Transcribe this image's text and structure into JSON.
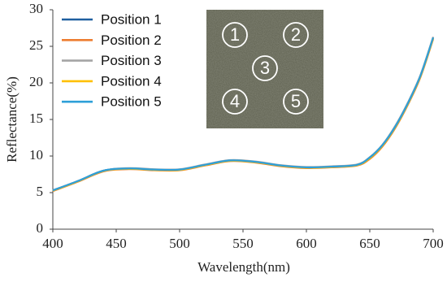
{
  "chart_data": {
    "type": "line",
    "xlabel": "Wavelength(nm)",
    "ylabel": "Reflectance(%)",
    "x": [
      400,
      420,
      440,
      460,
      480,
      500,
      520,
      540,
      560,
      580,
      600,
      620,
      640,
      650,
      660,
      670,
      680,
      690,
      700
    ],
    "series": [
      {
        "name": "Position 1",
        "color": "#1f5fa0",
        "values": [
          5.3,
          6.6,
          8.0,
          8.3,
          8.15,
          8.15,
          8.8,
          9.4,
          9.2,
          8.7,
          8.45,
          8.55,
          8.8,
          9.8,
          11.5,
          14.0,
          17.2,
          21.0,
          26.2
        ]
      },
      {
        "name": "Position 2",
        "color": "#ed7d31",
        "values": [
          5.2,
          6.5,
          7.9,
          8.2,
          8.05,
          8.05,
          8.7,
          9.3,
          9.1,
          8.6,
          8.35,
          8.45,
          8.7,
          9.6,
          11.3,
          13.8,
          17.0,
          20.8,
          26.0
        ]
      },
      {
        "name": "Position 3",
        "color": "#a5a5a5",
        "values": [
          5.3,
          6.6,
          8.0,
          8.35,
          8.2,
          8.2,
          8.85,
          9.45,
          9.25,
          8.75,
          8.5,
          8.6,
          8.85,
          9.85,
          11.55,
          14.1,
          17.3,
          21.1,
          26.3
        ]
      },
      {
        "name": "Position 4",
        "color": "#ffc000",
        "values": [
          5.25,
          6.55,
          7.95,
          8.25,
          8.1,
          8.1,
          8.75,
          9.35,
          9.15,
          8.65,
          8.4,
          8.5,
          8.75,
          9.7,
          11.4,
          13.9,
          17.1,
          20.9,
          26.1
        ]
      },
      {
        "name": "Position 5",
        "color": "#2e9fd8",
        "values": [
          5.3,
          6.6,
          8.0,
          8.3,
          8.15,
          8.15,
          8.8,
          9.4,
          9.2,
          8.7,
          8.45,
          8.55,
          8.8,
          9.8,
          11.5,
          14.0,
          17.2,
          21.0,
          26.2
        ]
      }
    ],
    "xlim": [
      400,
      700
    ],
    "xticks": [
      400,
      450,
      500,
      550,
      600,
      650,
      700
    ],
    "ylim": [
      0,
      30
    ],
    "yticks": [
      0,
      5,
      10,
      15,
      20,
      25,
      30
    ],
    "grid": false,
    "legend": "upper left",
    "inset_labels": [
      "1",
      "2",
      "3",
      "4",
      "5"
    ]
  }
}
